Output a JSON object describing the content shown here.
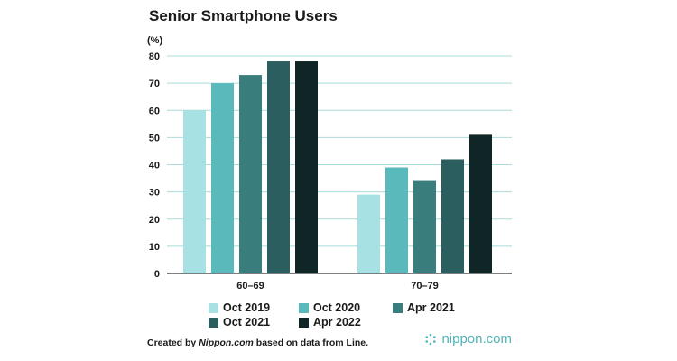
{
  "chart_data": {
    "type": "bar",
    "title": "Senior Smartphone Users",
    "ylabel": "(%)",
    "xlabel": "",
    "ylim": [
      0,
      80
    ],
    "yticks": [
      0,
      10,
      20,
      30,
      40,
      50,
      60,
      70,
      80
    ],
    "grid": true,
    "legend_position": "bottom",
    "categories": [
      "60–69",
      "70–79"
    ],
    "series": [
      {
        "name": "Oct 2019",
        "color": "#a8e1e3",
        "values": [
          60,
          29
        ]
      },
      {
        "name": "Oct 2020",
        "color": "#5ab9bb",
        "values": [
          70,
          39
        ]
      },
      {
        "name": "Apr 2021",
        "color": "#3a7d7d",
        "values": [
          73,
          34
        ]
      },
      {
        "name": "Oct 2021",
        "color": "#2b5e5e",
        "values": [
          78,
          42
        ]
      },
      {
        "name": "Apr 2022",
        "color": "#0f2526",
        "values": [
          78,
          51
        ]
      }
    ]
  },
  "footer": {
    "prefix": "Created by ",
    "source": "Nippon.com",
    "suffix": " based on data from Line."
  },
  "logo": {
    "text": "nippon.com",
    "color": "#4fb3b8"
  }
}
